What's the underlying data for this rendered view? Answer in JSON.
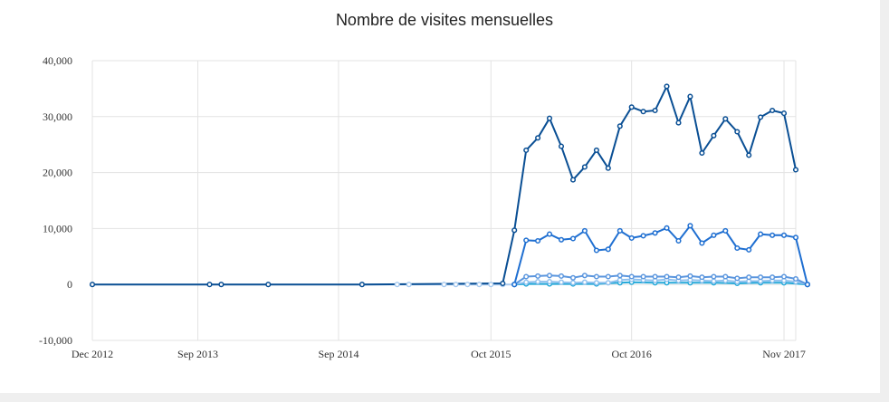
{
  "chart_data": {
    "type": "line",
    "title": "Nombre de visites mensuelles",
    "xlabel": "",
    "ylabel": "",
    "ylim": [
      -10000,
      40000
    ],
    "y_ticks": [
      "-10,000",
      "0",
      "10,000",
      "20,000",
      "30,000",
      "40,000"
    ],
    "y_tick_values": [
      -10000,
      0,
      10000,
      20000,
      30000,
      40000
    ],
    "x_ticks": [
      "Dec 2012",
      "Sep 2013",
      "Sep 2014",
      "Oct 2015",
      "Oct 2016",
      "Nov 2017"
    ],
    "x_tick_values": [
      "2012-12",
      "2013-09",
      "2014-09",
      "2015-10",
      "2016-10",
      "2017-11"
    ],
    "xlim": [
      "2012-12",
      "2017-12"
    ],
    "grid": true,
    "legend": "none",
    "series": [
      {
        "color": "#0a4f94",
        "points": [
          [
            "2012-12",
            0
          ],
          [
            "2013-10",
            0
          ],
          [
            "2013-11",
            0
          ],
          [
            "2014-03",
            0
          ],
          [
            "2014-11",
            0
          ],
          [
            "2015-11",
            200
          ],
          [
            "2015-12",
            9700
          ],
          [
            "2016-01",
            24000
          ],
          [
            "2016-02",
            26200
          ],
          [
            "2016-03",
            29700
          ],
          [
            "2016-04",
            24700
          ],
          [
            "2016-05",
            18700
          ],
          [
            "2016-06",
            21000
          ],
          [
            "2016-07",
            24000
          ],
          [
            "2016-08",
            20800
          ],
          [
            "2016-09",
            28300
          ],
          [
            "2016-10",
            31700
          ],
          [
            "2016-11",
            30900
          ],
          [
            "2016-12",
            31100
          ],
          [
            "2017-01",
            35400
          ],
          [
            "2017-02",
            28900
          ],
          [
            "2017-03",
            33600
          ],
          [
            "2017-04",
            23500
          ],
          [
            "2017-05",
            26600
          ],
          [
            "2017-06",
            29600
          ],
          [
            "2017-07",
            27300
          ],
          [
            "2017-08",
            23100
          ],
          [
            "2017-09",
            29900
          ],
          [
            "2017-10",
            31100
          ],
          [
            "2017-11",
            30600
          ],
          [
            "2017-12",
            20500
          ]
        ]
      },
      {
        "color": "#1f6fd1",
        "points": [
          [
            "2015-12",
            0
          ],
          [
            "2016-01",
            7900
          ],
          [
            "2016-02",
            7800
          ],
          [
            "2016-03",
            9000
          ],
          [
            "2016-04",
            8000
          ],
          [
            "2016-05",
            8200
          ],
          [
            "2016-06",
            9600
          ],
          [
            "2016-07",
            6100
          ],
          [
            "2016-08",
            6300
          ],
          [
            "2016-09",
            9600
          ],
          [
            "2016-10",
            8300
          ],
          [
            "2016-11",
            8700
          ],
          [
            "2016-12",
            9200
          ],
          [
            "2017-01",
            10100
          ],
          [
            "2017-02",
            7800
          ],
          [
            "2017-03",
            10500
          ],
          [
            "2017-04",
            7400
          ],
          [
            "2017-05",
            8800
          ],
          [
            "2017-06",
            9600
          ],
          [
            "2017-07",
            6500
          ],
          [
            "2017-08",
            6200
          ],
          [
            "2017-09",
            9000
          ],
          [
            "2017-10",
            8800
          ],
          [
            "2017-11",
            8800
          ],
          [
            "2017-12",
            8400
          ],
          [
            "2018-01",
            0
          ]
        ]
      },
      {
        "color": "#5b96de",
        "points": [
          [
            "2015-12",
            0
          ],
          [
            "2016-01",
            1400
          ],
          [
            "2016-02",
            1500
          ],
          [
            "2016-03",
            1600
          ],
          [
            "2016-04",
            1500
          ],
          [
            "2016-05",
            1200
          ],
          [
            "2016-06",
            1600
          ],
          [
            "2016-07",
            1400
          ],
          [
            "2016-08",
            1400
          ],
          [
            "2016-09",
            1600
          ],
          [
            "2016-10",
            1400
          ],
          [
            "2016-11",
            1400
          ],
          [
            "2016-12",
            1400
          ],
          [
            "2017-01",
            1400
          ],
          [
            "2017-02",
            1300
          ],
          [
            "2017-03",
            1500
          ],
          [
            "2017-04",
            1300
          ],
          [
            "2017-05",
            1400
          ],
          [
            "2017-06",
            1400
          ],
          [
            "2017-07",
            1100
          ],
          [
            "2017-08",
            1300
          ],
          [
            "2017-09",
            1300
          ],
          [
            "2017-10",
            1300
          ],
          [
            "2017-11",
            1400
          ],
          [
            "2017-12",
            1000
          ],
          [
            "2018-01",
            0
          ]
        ]
      },
      {
        "color": "#8fc0ee",
        "points": [
          [
            "2015-12",
            0
          ],
          [
            "2016-01",
            400
          ],
          [
            "2016-02",
            500
          ],
          [
            "2016-03",
            500
          ],
          [
            "2016-04",
            400
          ],
          [
            "2016-05",
            300
          ],
          [
            "2016-06",
            400
          ],
          [
            "2016-07",
            300
          ],
          [
            "2016-08",
            300
          ],
          [
            "2016-09",
            800
          ],
          [
            "2016-10",
            900
          ],
          [
            "2016-11",
            800
          ],
          [
            "2016-12",
            700
          ],
          [
            "2017-01",
            900
          ],
          [
            "2017-02",
            700
          ],
          [
            "2017-03",
            800
          ],
          [
            "2017-04",
            700
          ],
          [
            "2017-05",
            600
          ],
          [
            "2017-06",
            700
          ],
          [
            "2017-07",
            500
          ],
          [
            "2017-08",
            600
          ],
          [
            "2017-09",
            600
          ],
          [
            "2017-10",
            700
          ],
          [
            "2017-11",
            700
          ],
          [
            "2017-12",
            500
          ],
          [
            "2018-01",
            0
          ]
        ]
      },
      {
        "color": "#25a9d9",
        "points": [
          [
            "2015-12",
            0
          ],
          [
            "2016-01",
            100
          ],
          [
            "2016-03",
            100
          ],
          [
            "2016-05",
            100
          ],
          [
            "2016-07",
            100
          ],
          [
            "2016-09",
            300
          ],
          [
            "2016-10",
            400
          ],
          [
            "2016-12",
            300
          ],
          [
            "2017-01",
            300
          ],
          [
            "2017-03",
            300
          ],
          [
            "2017-05",
            300
          ],
          [
            "2017-07",
            200
          ],
          [
            "2017-09",
            300
          ],
          [
            "2017-11",
            300
          ],
          [
            "2018-01",
            0
          ]
        ]
      },
      {
        "color": "#a9cbef",
        "points": [
          [
            "2014-11",
            0
          ],
          [
            "2015-02",
            0
          ],
          [
            "2015-03",
            0
          ],
          [
            "2015-06",
            0
          ],
          [
            "2015-07",
            0
          ],
          [
            "2015-08",
            0
          ],
          [
            "2015-09",
            0
          ],
          [
            "2015-10",
            0
          ],
          [
            "2015-11",
            0
          ],
          [
            "2015-12",
            0
          ]
        ]
      }
    ]
  }
}
